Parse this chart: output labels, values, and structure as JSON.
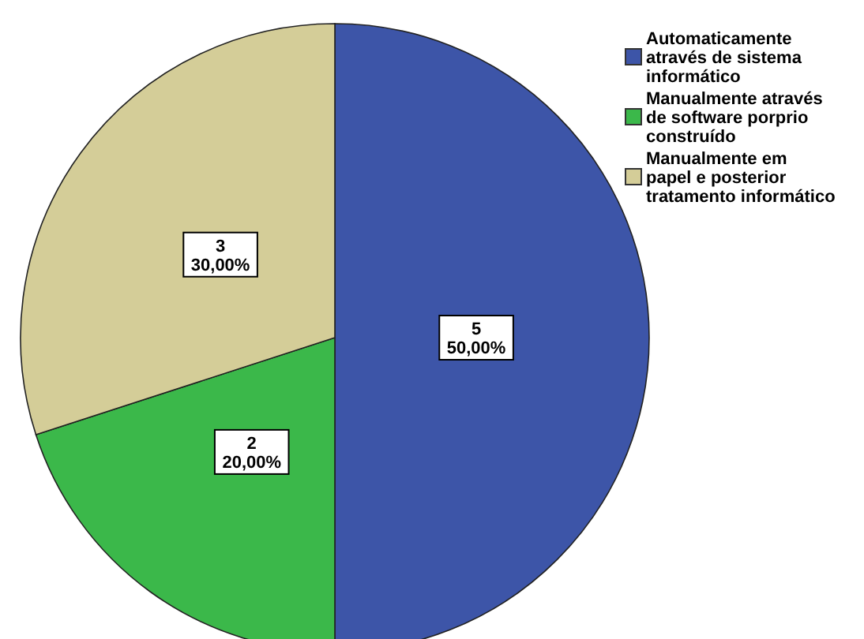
{
  "chart_data": {
    "type": "pie",
    "categories": [
      "Automaticamente\natravés de sistema\ninformático",
      "Manualmente através\nde software porprio\nconstruído",
      "Manualmente em\npapel e  posterior\ntratamento informático"
    ],
    "values": [
      5,
      2,
      3
    ],
    "colors": [
      "#3d55a8",
      "#3bb84a",
      "#d4cd98"
    ],
    "value_labels": [
      "5\n50,00%",
      "2\n20,00%",
      "3\n30,00%"
    ],
    "legend": "top right"
  }
}
